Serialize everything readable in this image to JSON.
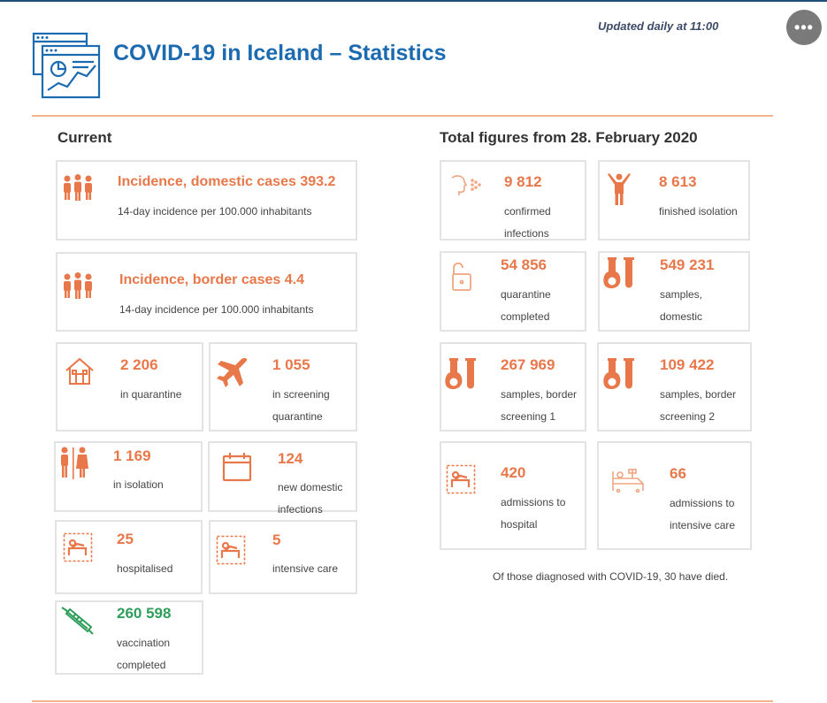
{
  "header": {
    "title": "COVID-19 in Iceland – Statistics",
    "updated": "Updated daily at 11:00",
    "more_label": "•••"
  },
  "current": {
    "heading": "Current",
    "incidence_domestic": {
      "label": "Incidence, domestic cases 393.2",
      "desc": "14-day incidence per 100.000 inhabitants"
    },
    "incidence_border": {
      "label": "Incidence, border cases 4.4",
      "desc": "14-day incidence per 100.000 inhabitants"
    },
    "quarantine": {
      "value": "2 206",
      "line1": "in quarantine"
    },
    "screening_quarantine": {
      "value": "1 055",
      "line1": "in screening",
      "line2": "quarantine"
    },
    "isolation": {
      "value": "1 169",
      "line1": "in isolation"
    },
    "new_domestic": {
      "value": "124",
      "line1": "new domestic",
      "line2": "infections"
    },
    "hospitalised": {
      "value": "25",
      "line1": "hospitalised"
    },
    "intensive_care": {
      "value": "5",
      "line1": "intensive care"
    },
    "vaccination": {
      "value": "260 598",
      "line1": "vaccination",
      "line2": "completed"
    }
  },
  "totals": {
    "heading": "Total figures from 28. February 2020",
    "confirmed": {
      "value": "9 812",
      "line1": "confirmed",
      "line2": "infections"
    },
    "finished_isolation": {
      "value": "8 613",
      "line1": "finished isolation"
    },
    "quarantine_completed": {
      "value": "54 856",
      "line1": "quarantine",
      "line2": "completed"
    },
    "samples_domestic": {
      "value": "549 231",
      "line1": "samples,",
      "line2": "domestic"
    },
    "samples_border1": {
      "value": "267 969",
      "line1": "samples, border",
      "line2": "screening 1"
    },
    "samples_border2": {
      "value": "109 422",
      "line1": "samples, border",
      "line2": "screening 2"
    },
    "admissions_hospital": {
      "value": "420",
      "line1": "admissions to",
      "line2": "hospital"
    },
    "admissions_icu": {
      "value": "66",
      "line1": "admissions to",
      "line2": "intensive care"
    },
    "died_note": "Of those diagnosed with COVID-19, 30 have died."
  },
  "colors": {
    "accent": "#e8784a",
    "title": "#1c6bb0",
    "green": "#2e9e5b",
    "border": "#e3e3e3"
  }
}
